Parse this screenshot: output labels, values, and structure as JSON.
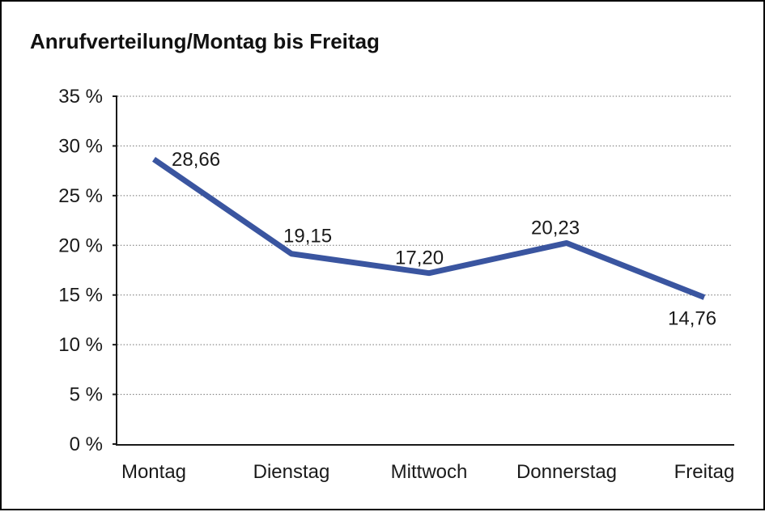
{
  "chart_data": {
    "type": "line",
    "title": "Anrufverteilung/Montag bis Freitag",
    "categories": [
      "Montag",
      "Dienstag",
      "Mittwoch",
      "Donnerstag",
      "Freitag"
    ],
    "values": [
      28.66,
      19.15,
      17.2,
      20.23,
      14.76
    ],
    "point_labels": [
      "28,66",
      "19,15",
      "17,20",
      "20,23",
      "14,76"
    ],
    "y_tick_labels": [
      "0 %",
      "5 %",
      "10 %",
      "15 %",
      "20 %",
      "25 %",
      "30 %",
      "35 %"
    ],
    "xlabel": "",
    "ylabel": "",
    "ylim": [
      0,
      35
    ],
    "y_step": 5,
    "grid": "horizontal-dotted",
    "legend": "none",
    "colors": {
      "line": "#3a55a0",
      "axis": "#1a1a1a",
      "gridline": "#707070",
      "text": "#1a1a1a",
      "background": "#ffffff",
      "frame_border": "#000000"
    }
  }
}
